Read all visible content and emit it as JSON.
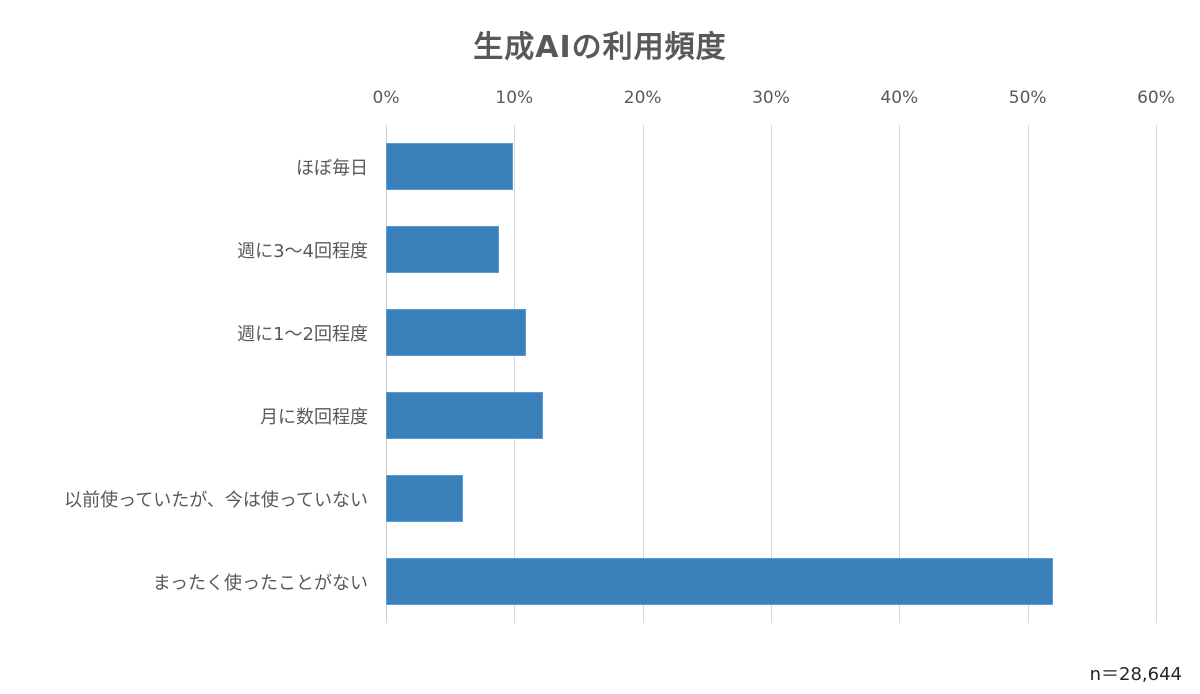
{
  "chart_data": {
    "type": "bar",
    "orientation": "horizontal",
    "title": "生成AIの利用頻度",
    "xlabel": "",
    "ylabel": "",
    "xlim": [
      0,
      60
    ],
    "x_ticks": [
      "0%",
      "10%",
      "20%",
      "30%",
      "40%",
      "50%",
      "60%"
    ],
    "x_tick_values": [
      0,
      10,
      20,
      30,
      40,
      50,
      60
    ],
    "x_axis_position": "top",
    "grid": true,
    "legend": null,
    "categories": [
      "ほぼ毎日",
      "週に3〜4回程度",
      "週に1〜2回程度",
      "月に数回程度",
      "以前使っていたが、今は使っていない",
      "まったく使ったことがない"
    ],
    "values": [
      9.9,
      8.8,
      10.9,
      12.2,
      6.0,
      52.0
    ],
    "unit": "%",
    "bar_color": "#3a80ba",
    "annotation": "n＝28,644"
  },
  "labels": {
    "title": "生成AIの利用頻度",
    "note": "n＝28,644",
    "ticks": [
      "0%",
      "10%",
      "20%",
      "30%",
      "40%",
      "50%",
      "60%"
    ],
    "categories": [
      "ほぼ毎日",
      "週に3〜4回程度",
      "週に1〜2回程度",
      "月に数回程度",
      "以前使っていたが、今は使っていない",
      "まったく使ったことがない"
    ]
  }
}
